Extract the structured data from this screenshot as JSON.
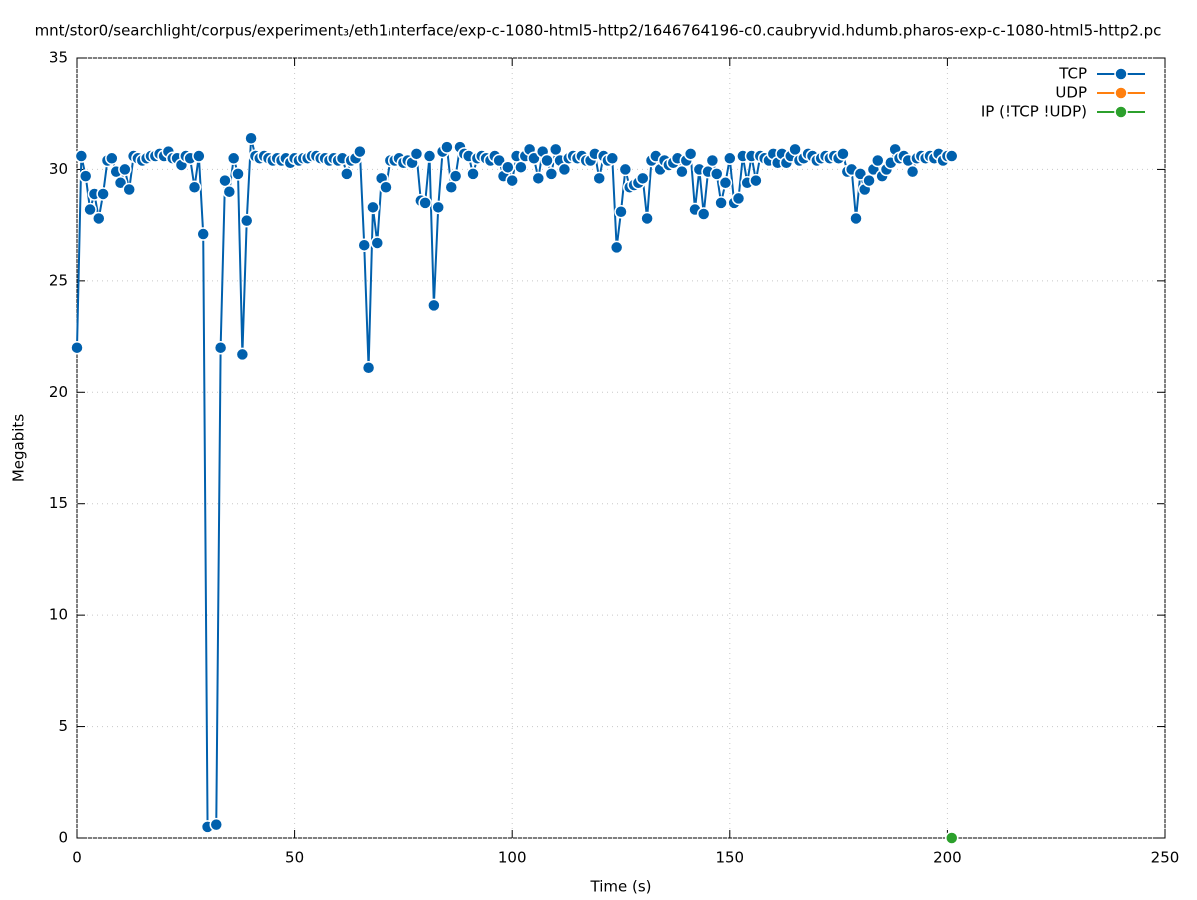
{
  "chart_data": {
    "type": "line",
    "title": "mnt/stor0/searchlight/corpus/experiment₃/eth1ᵢnterface/exp-c-1080-html5-http2/1646764196-c0.caubryvid.hdumb.pharos-exp-c-1080-html5-http2.pc",
    "x_label": "Time (s)",
    "y_label": "Megabits",
    "xlim": [
      0,
      250
    ],
    "xticks": [
      0,
      50,
      100,
      150,
      200,
      250
    ],
    "ylim": [
      0,
      35
    ],
    "yticks": [
      0,
      5,
      10,
      15,
      20,
      25,
      30,
      35
    ],
    "grid": true,
    "legend": "top-right",
    "series": [
      {
        "name": "TCP",
        "color": "#0060ad",
        "x": [
          0,
          1,
          2,
          3,
          4,
          5,
          6,
          7,
          8,
          9,
          10,
          11,
          12,
          13,
          14,
          15,
          16,
          17,
          18,
          19,
          20,
          21,
          22,
          23,
          24,
          25,
          26,
          27,
          28,
          29,
          30,
          32,
          33,
          34,
          35,
          36,
          37,
          38,
          39,
          40,
          41,
          42,
          43,
          44,
          45,
          46,
          47,
          48,
          49,
          50,
          51,
          52,
          53,
          54,
          55,
          56,
          57,
          58,
          59,
          60,
          61,
          62,
          63,
          64,
          65,
          66,
          67,
          68,
          69,
          70,
          71,
          72,
          73,
          74,
          75,
          76,
          77,
          78,
          79,
          80,
          81,
          82,
          83,
          84,
          85,
          86,
          87,
          88,
          89,
          90,
          91,
          92,
          93,
          94,
          95,
          96,
          97,
          98,
          99,
          100,
          101,
          102,
          103,
          104,
          105,
          106,
          107,
          108,
          109,
          110,
          111,
          112,
          113,
          114,
          115,
          116,
          117,
          118,
          119,
          120,
          121,
          122,
          123,
          124,
          125,
          126,
          127,
          128,
          129,
          130,
          131,
          132,
          133,
          134,
          135,
          136,
          137,
          138,
          139,
          140,
          141,
          142,
          143,
          144,
          145,
          146,
          147,
          148,
          149,
          150,
          151,
          152,
          153,
          154,
          155,
          156,
          157,
          158,
          159,
          160,
          161,
          162,
          163,
          164,
          165,
          166,
          167,
          168,
          169,
          170,
          171,
          172,
          173,
          174,
          175,
          176,
          177,
          178,
          179,
          180,
          181,
          182,
          183,
          184,
          185,
          186,
          187,
          188,
          189,
          190,
          191,
          192,
          193,
          194,
          195,
          196,
          197,
          198,
          199,
          200,
          201
        ],
        "values": [
          22.0,
          30.6,
          29.7,
          28.2,
          28.9,
          27.8,
          28.9,
          30.4,
          30.5,
          29.9,
          29.4,
          30.0,
          29.1,
          30.6,
          30.5,
          30.4,
          30.5,
          30.6,
          30.6,
          30.7,
          30.6,
          30.8,
          30.5,
          30.5,
          30.2,
          30.6,
          30.5,
          29.2,
          30.6,
          27.1,
          0.5,
          0.6,
          22.0,
          29.5,
          29.0,
          30.5,
          29.8,
          21.7,
          27.7,
          31.4,
          30.6,
          30.5,
          30.6,
          30.5,
          30.4,
          30.5,
          30.4,
          30.5,
          30.3,
          30.5,
          30.4,
          30.5,
          30.5,
          30.6,
          30.6,
          30.5,
          30.5,
          30.4,
          30.5,
          30.4,
          30.5,
          29.8,
          30.4,
          30.5,
          30.8,
          26.6,
          21.1,
          28.3,
          26.7,
          29.6,
          29.2,
          30.4,
          30.4,
          30.5,
          30.3,
          30.4,
          30.3,
          30.7,
          28.6,
          28.5,
          30.6,
          23.9,
          28.3,
          30.8,
          31.0,
          29.2,
          29.7,
          31.0,
          30.7,
          30.6,
          29.8,
          30.5,
          30.6,
          30.5,
          30.4,
          30.6,
          30.4,
          29.7,
          30.1,
          29.5,
          30.6,
          30.1,
          30.6,
          30.9,
          30.5,
          29.6,
          30.8,
          30.4,
          29.8,
          30.9,
          30.4,
          30.0,
          30.5,
          30.6,
          30.5,
          30.6,
          30.4,
          30.4,
          30.7,
          29.6,
          30.6,
          30.4,
          30.5,
          26.5,
          28.1,
          30.0,
          29.2,
          29.3,
          29.4,
          29.6,
          27.8,
          30.4,
          30.6,
          30.0,
          30.4,
          30.2,
          30.3,
          30.5,
          29.9,
          30.4,
          30.7,
          28.2,
          30.0,
          28.0,
          29.9,
          30.4,
          29.8,
          28.5,
          29.4,
          30.5,
          28.5,
          28.7,
          30.6,
          29.4,
          30.6,
          29.5,
          30.6,
          30.5,
          30.4,
          30.7,
          30.3,
          30.7,
          30.3,
          30.6,
          30.9,
          30.4,
          30.5,
          30.7,
          30.6,
          30.4,
          30.5,
          30.6,
          30.5,
          30.6,
          30.5,
          30.7,
          29.9,
          30.0,
          27.8,
          29.8,
          29.1,
          29.5,
          30.0,
          30.4,
          29.7,
          30.0,
          30.3,
          30.9,
          30.5,
          30.6,
          30.4,
          29.9,
          30.5,
          30.6,
          30.5,
          30.6,
          30.5,
          30.7,
          30.4,
          30.6,
          30.6
        ]
      },
      {
        "name": "UDP",
        "color": "#ff7f0e",
        "x": [],
        "values": []
      },
      {
        "name": "IP (!TCP  !UDP)",
        "color": "#2ca02c",
        "x": [
          201
        ],
        "values": [
          0
        ]
      }
    ]
  }
}
